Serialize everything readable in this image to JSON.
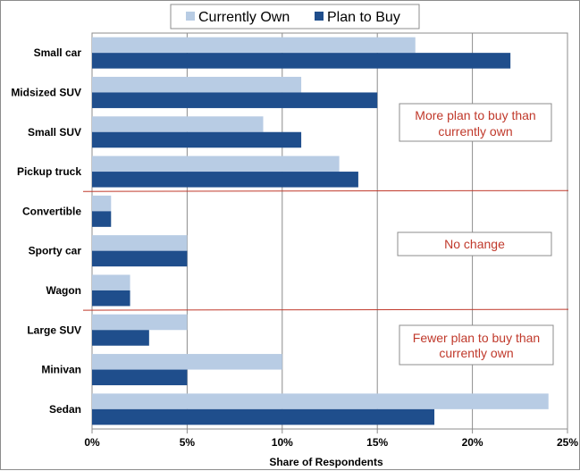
{
  "chart_data": {
    "type": "bar",
    "orientation": "horizontal",
    "title": "",
    "xlabel": "Share of Respondents",
    "ylabel": "",
    "xlim": [
      0,
      25
    ],
    "x_tick_values": [
      0,
      5,
      10,
      15,
      20,
      25
    ],
    "x_tick_labels": [
      "0%",
      "5%",
      "10%",
      "15%",
      "20%",
      "25%"
    ],
    "categories": [
      "Small car",
      "Midsized SUV",
      "Small SUV",
      "Pickup truck",
      "Convertible",
      "Sporty car",
      "Wagon",
      "Large SUV",
      "Minivan",
      "Sedan"
    ],
    "series": [
      {
        "name": "Currently Own",
        "color": "#b8cce4",
        "values": [
          17,
          11,
          9,
          13,
          1,
          5,
          2,
          5,
          10,
          24
        ]
      },
      {
        "name": "Plan to Buy",
        "color": "#1f4e8c",
        "values": [
          22,
          15,
          11,
          14,
          1,
          5,
          2,
          3,
          5,
          18
        ]
      }
    ],
    "grid": true,
    "legend_position": "top",
    "group_dividers_after": [
      "Pickup truck",
      "Wagon"
    ],
    "divider_color": "#c0392b",
    "annotations": [
      {
        "lines": [
          "More plan to buy than",
          "currently own"
        ]
      },
      {
        "lines": [
          "No change"
        ]
      },
      {
        "lines": [
          "Fewer plan to buy than",
          "currently own"
        ]
      }
    ]
  }
}
